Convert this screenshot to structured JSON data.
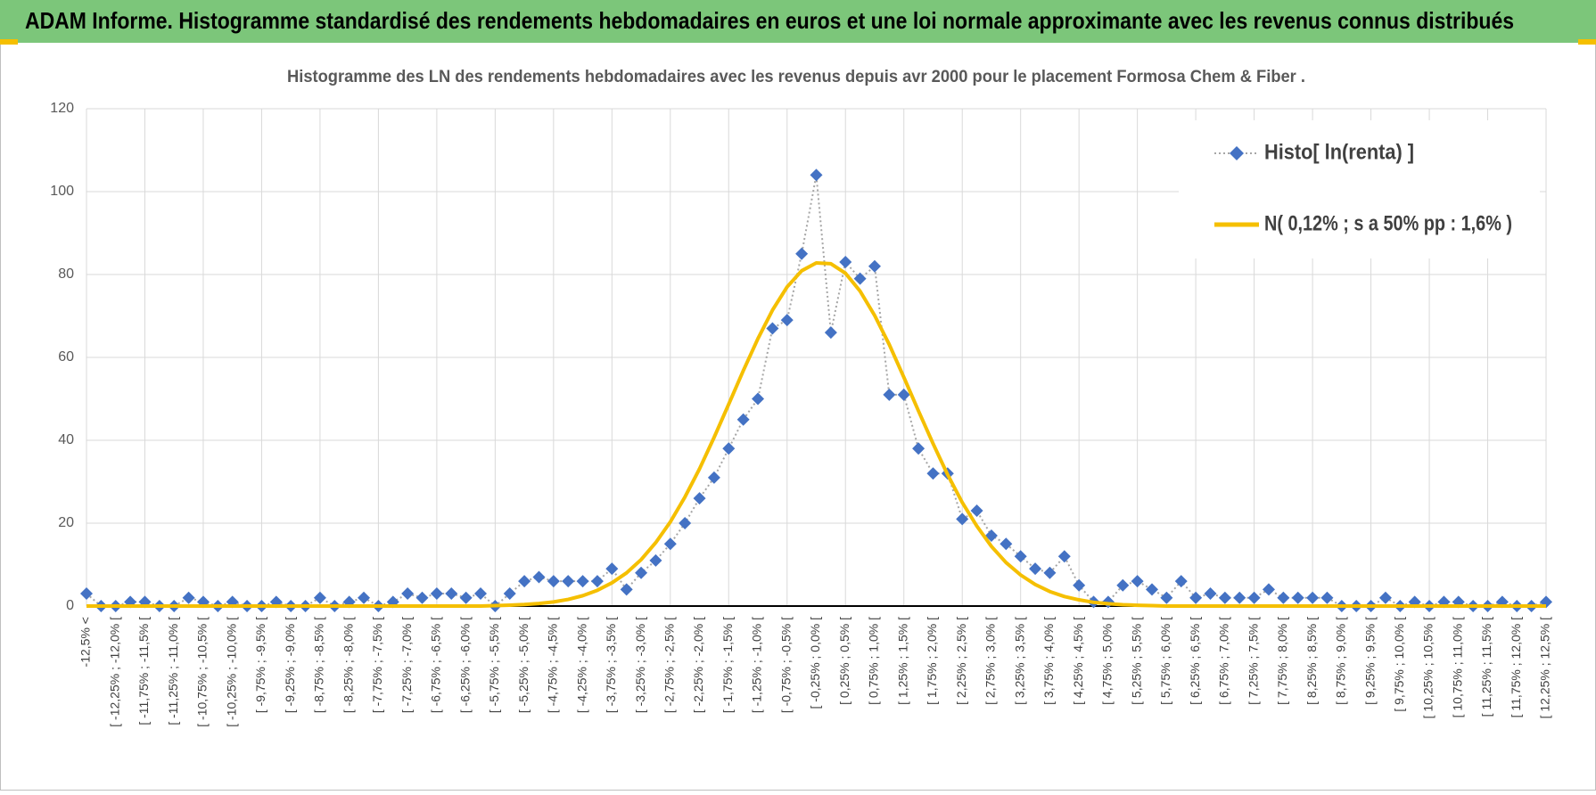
{
  "chart_data": {
    "type": "line",
    "title": "ADAM Informe. Histogramme standardisé des rendements hebdomadaires en euros et une loi normale approximante avec les revenus connus distribués",
    "subtitle": "Histogramme des LN des rendements hebdomadaires avec les revenus depuis avr 2000 pour le placement Formosa Chem & Fiber .",
    "categories": [
      "-12,5% <",
      null,
      "[ -12,25% ; -12,0% [",
      null,
      "[ -11,75% ; -11,5% [",
      null,
      "[ -11,25% ; -11,0% [",
      null,
      "[ -10,75% ; -10,5% [",
      null,
      "[ -10,25% ; -10,0% [",
      null,
      "[ -9,75% ; -9,5% [",
      null,
      "[ -9,25% ; -9,0% [",
      null,
      "[ -8,75% ; -8,5% [",
      null,
      "[ -8,25% ; -8,0% [",
      null,
      "[ -7,75% ; -7,5% [",
      null,
      "[ -7,25% ; -7,0% [",
      null,
      "[ -6,75% ; -6,5% [",
      null,
      "[ -6,25% ; -6,0% [",
      null,
      "[ -5,75% ; -5,5% [",
      null,
      "[ -5,25% ; -5,0% [",
      null,
      "[ -4,75% ; -4,5% [",
      null,
      "[ -4,25% ; -4,0% [",
      null,
      "[ -3,75% ; -3,5% [",
      null,
      "[ -3,25% ; -3,0% [",
      null,
      "[ -2,75% ; -2,5% [",
      null,
      "[ -2,25% ; -2,0% [",
      null,
      "[ -1,75% ; -1,5% [",
      null,
      "[ -1,25% ; -1,0% [",
      null,
      "[ -0,75% ; -0,5% [",
      null,
      "[ -0,25% ; 0,0% [",
      null,
      "[ 0,25% ; 0,5% [",
      null,
      "[ 0,75% ; 1,0% [",
      null,
      "[ 1,25% ; 1,5% [",
      null,
      "[ 1,75% ; 2,0% [",
      null,
      "[ 2,25% ; 2,5% [",
      null,
      "[ 2,75% ; 3,0% [",
      null,
      "[ 3,25% ; 3,5% [",
      null,
      "[ 3,75% ; 4,0% [",
      null,
      "[ 4,25% ; 4,5% [",
      null,
      "[ 4,75% ; 5,0% [",
      null,
      "[ 5,25% ; 5,5% [",
      null,
      "[ 5,75% ; 6,0% [",
      null,
      "[ 6,25% ; 6,5% [",
      null,
      "[ 6,75% ; 7,0% [",
      null,
      "[ 7,25% ; 7,5% [",
      null,
      "[ 7,75% ; 8,0% [",
      null,
      "[ 8,25% ; 8,5% [",
      null,
      "[ 8,75% ; 9,0% [",
      null,
      "[ 9,25% ; 9,5% [",
      null,
      "[ 9,75% ; 10,0% [",
      null,
      "[ 10,25% ; 10,5% [",
      null,
      "[ 10,75% ; 11,0% [",
      null,
      "[ 11,25% ; 11,5% [",
      null,
      "[ 11,75% ; 12,0% [",
      null,
      "[ 12,25% ; 12,5% ["
    ],
    "series": [
      {
        "name": "Histo[ ln(renta) ]",
        "color": "#4472c4",
        "values": [
          3,
          0,
          0,
          1,
          1,
          0,
          0,
          2,
          1,
          0,
          1,
          0,
          0,
          1,
          0,
          0,
          2,
          0,
          1,
          2,
          0,
          1,
          3,
          2,
          3,
          3,
          2,
          3,
          0,
          3,
          6,
          7,
          6,
          6,
          6,
          6,
          9,
          4,
          8,
          11,
          15,
          20,
          26,
          31,
          38,
          45,
          50,
          67,
          69,
          85,
          104,
          66,
          83,
          79,
          82,
          51,
          51,
          38,
          32,
          32,
          21,
          23,
          17,
          15,
          12,
          9,
          8,
          12,
          5,
          1,
          1,
          5,
          6,
          4,
          2,
          6,
          2,
          3,
          2,
          2,
          2,
          4,
          2,
          2,
          2,
          2,
          0,
          0,
          0,
          2,
          0,
          1,
          0,
          1,
          1,
          0,
          0,
          1,
          0,
          0,
          1
        ]
      },
      {
        "name": "N( 0,12% ; s a 50% pp : 1,6% )",
        "color": "#f5bf00",
        "values": [
          0,
          0,
          0,
          0,
          0,
          0,
          0,
          0,
          0,
          0,
          0,
          0,
          0,
          0,
          0,
          0,
          0,
          0,
          0,
          0,
          0,
          0,
          0,
          0,
          0,
          0,
          0,
          0,
          0.12,
          0.21,
          0.37,
          0.62,
          1.0,
          1.6,
          2.5,
          3.8,
          5.6,
          8.0,
          11.2,
          15.3,
          20.3,
          26.3,
          33.1,
          40.7,
          48.7,
          56.8,
          64.5,
          71.4,
          77.0,
          80.9,
          82.8,
          82.6,
          80.3,
          76.0,
          70.1,
          63.1,
          55.2,
          47.1,
          39.2,
          31.7,
          25.0,
          19.3,
          14.4,
          10.5,
          7.5,
          5.2,
          3.5,
          2.3,
          1.5,
          0.9,
          0.56,
          0.33,
          0.19,
          0.1,
          0,
          0,
          0,
          0,
          0,
          0,
          0,
          0,
          0,
          0,
          0,
          0,
          0,
          0,
          0,
          0,
          0,
          0,
          0,
          0,
          0,
          0,
          0,
          0,
          0,
          0,
          0
        ]
      }
    ],
    "ylim": [
      0,
      120
    ],
    "yticks": [
      0,
      20,
      40,
      60,
      80,
      100,
      120
    ],
    "grid": true,
    "legend": "upper right"
  }
}
